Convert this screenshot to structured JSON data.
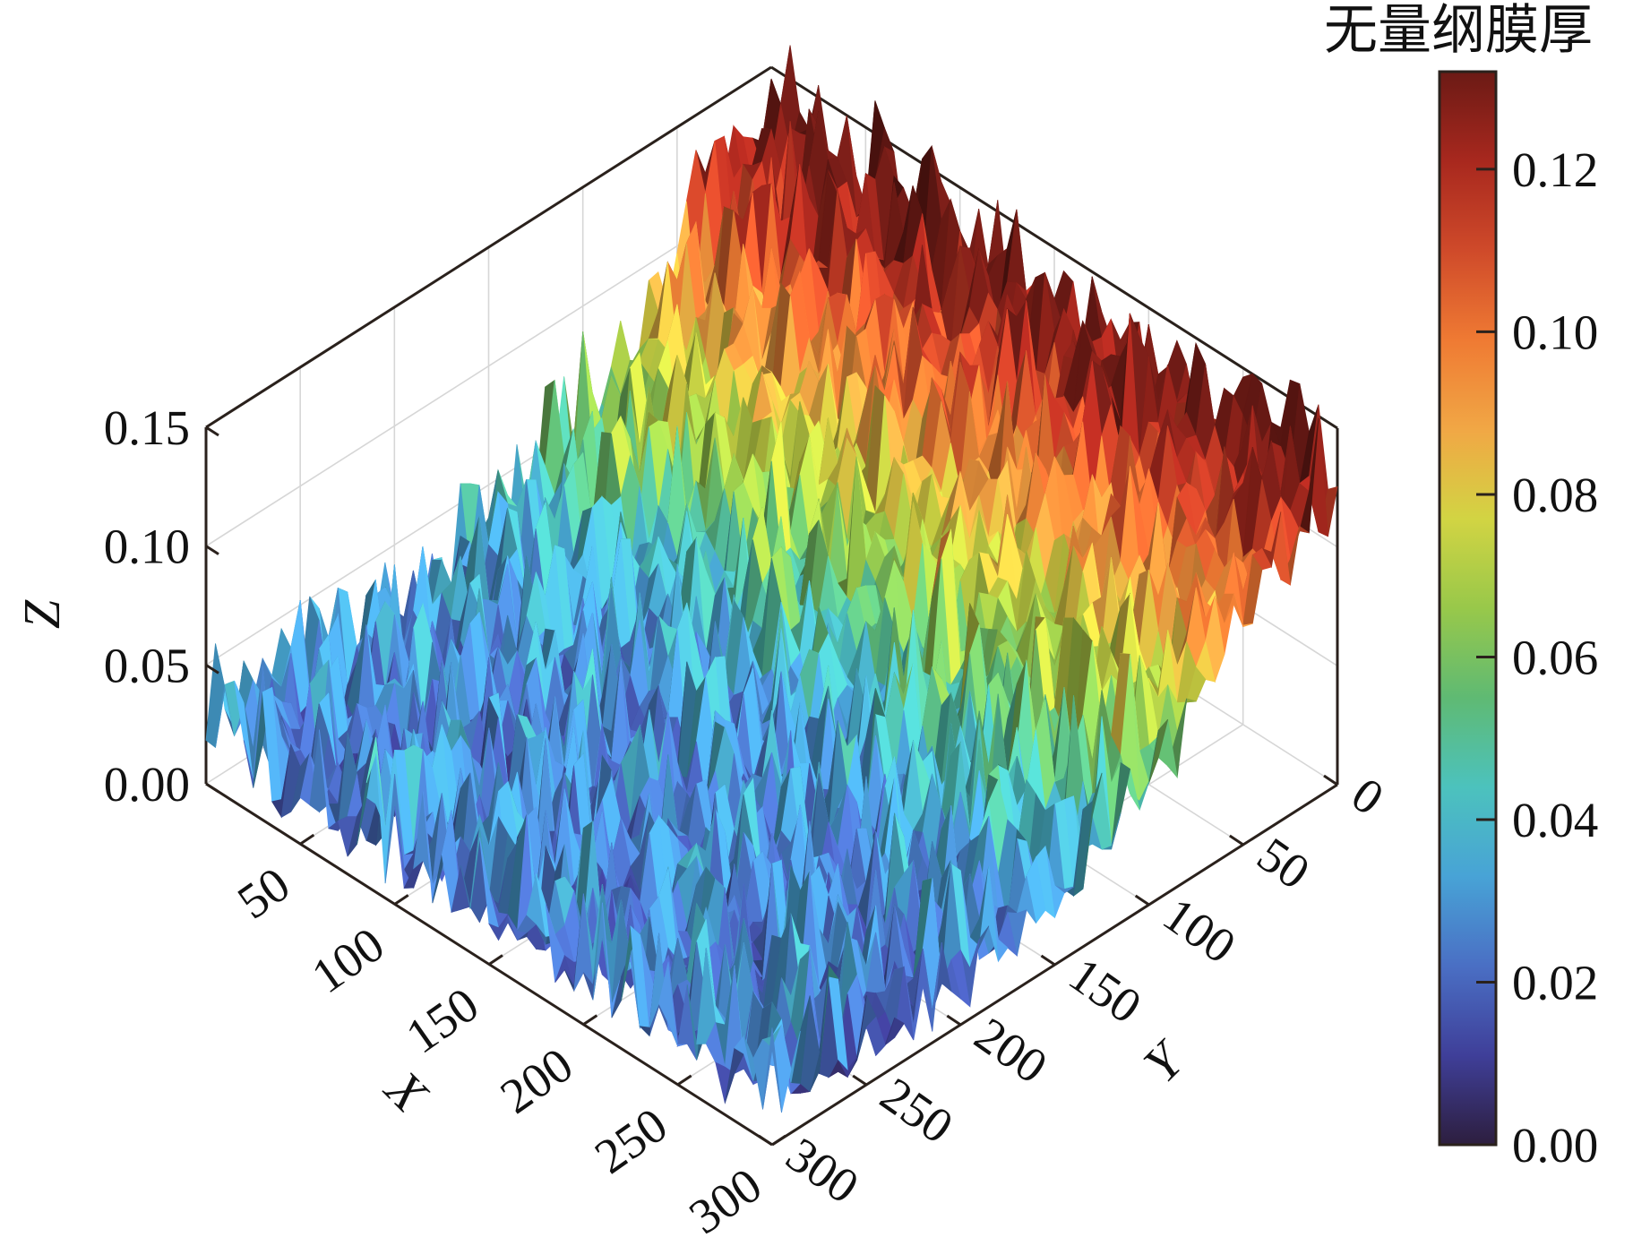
{
  "chart_data": {
    "type": "surface3d",
    "title": "",
    "xlabel": "X",
    "ylabel": "Y",
    "zlabel": "Z",
    "x_range": [
      0,
      300
    ],
    "y_range": [
      0,
      300
    ],
    "z_range": [
      0,
      0.15
    ],
    "x_ticks": [
      "50",
      "100",
      "150",
      "200",
      "250",
      "300"
    ],
    "y_ticks": [
      "0",
      "50",
      "100",
      "150",
      "200",
      "250",
      "300"
    ],
    "z_ticks": [
      "0.00",
      "0.05",
      "0.10",
      "0.15"
    ],
    "grid": true,
    "colorbar": {
      "title": "无量纲膜厚",
      "range": [
        0,
        0.132
      ],
      "ticks": [
        "0.00",
        "0.02",
        "0.04",
        "0.06",
        "0.08",
        "0.10",
        "0.12"
      ],
      "colormap": [
        "#2d1e3e",
        "#3f3f99",
        "#4a6fc4",
        "#48a3d6",
        "#4cc2bd",
        "#5fba73",
        "#98c84a",
        "#d2d443",
        "#f1a745",
        "#ef7a33",
        "#cf4a2a",
        "#a8281e",
        "#6b1a15"
      ]
    },
    "surface_profile": {
      "description_values": "thickness decreases along Y from ~0.12 at Y=0 to ~0 near Y=150, rough low-level peaks (~0.00-0.04) elsewhere",
      "y_samples": [
        0,
        25,
        50,
        75,
        100,
        125,
        150,
        200,
        250,
        300
      ],
      "mean_thickness": [
        0.12,
        0.105,
        0.085,
        0.065,
        0.045,
        0.028,
        0.015,
        0.01,
        0.01,
        0.01
      ]
    }
  }
}
